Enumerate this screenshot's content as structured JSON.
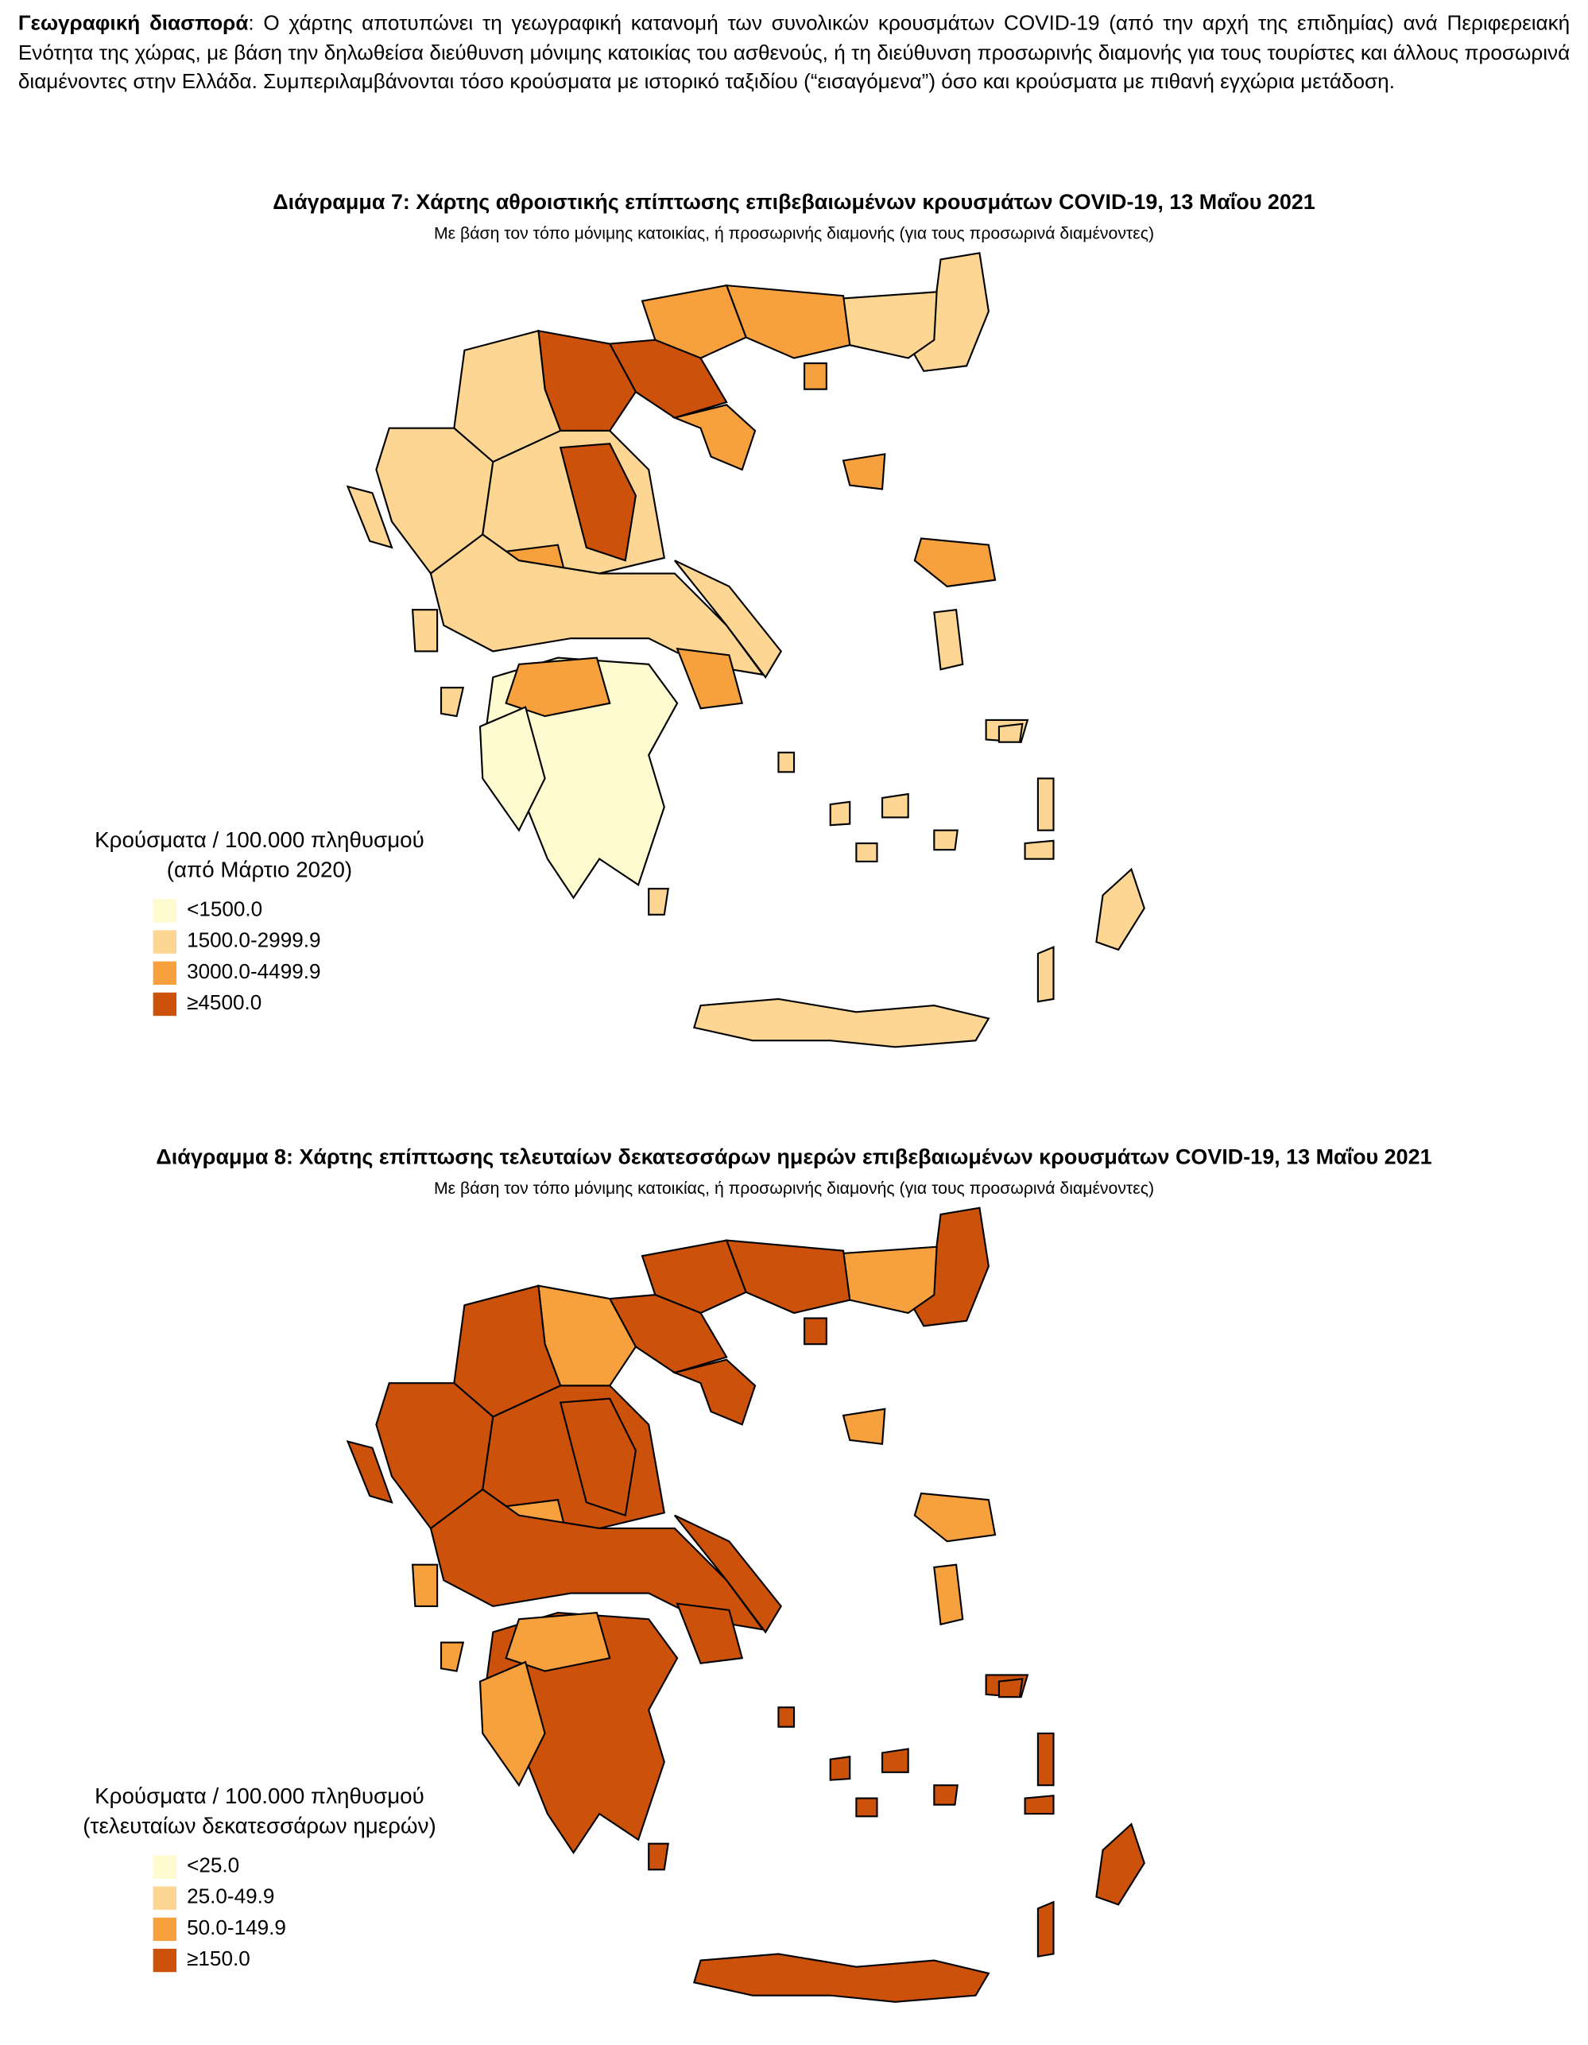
{
  "paragraph": {
    "lead": "Γεωγραφική διασπορά",
    "text": ": Ο χάρτης αποτυπώνει τη γεωγραφική κατανομή των συνολικών κρουσμάτων COVID-19 (από την αρχή της επιδημίας) ανά Περιφερειακή Ενότητα της χώρας, με βάση την δηλωθείσα διεύθυνση μόνιμης κατοικίας του ασθενούς, ή τη διεύθυνση προσωρινής διαμονής για τους τουρίστες και άλλους προσωρινά διαμένοντες στην Ελλάδα. Συμπεριλαμβάνονται τόσο κρούσματα με ιστορικό ταξιδίου (“εισαγόμενα”) όσο και κρούσματα με πιθανή εγχώρια μετάδοση."
  },
  "maps": [
    {
      "title": "Διάγραμμα 7: Χάρτης αθροιστικής επίπτωσης επιβεβαιωμένων κρουσμάτων COVID-19, 13 Μαΐου 2021",
      "subtitle": "Με βάση τον τόπο μόνιμης κατοικίας, ή προσωρινής διαμονής (για τους προσωρινά διαμένοντες)",
      "legend": {
        "title_lines": [
          "Κρούσματα / 100.000 πληθυσμού",
          "(από Μάρτιο 2020)"
        ],
        "items": [
          {
            "label": "<1500.0",
            "color": "#fefbd0"
          },
          {
            "label": "1500.0-2999.9",
            "color": "#fdd693"
          },
          {
            "label": "3000.0-4499.9",
            "color": "#f7a03e"
          },
          {
            "label": "≥4500.0",
            "color": "#cc520c"
          }
        ]
      }
    },
    {
      "title": "Διάγραμμα 8: Χάρτης επίπτωσης τελευταίων δεκατεσσάρων ημερών επιβεβαιωμένων κρουσμάτων COVID-19, 13 Μαΐου 2021",
      "subtitle": "Με βάση τον τόπο μόνιμης κατοικίας, ή προσωρινής διαμονής (για τους προσωρινά διαμένοντες)",
      "legend": {
        "title_lines": [
          "Κρούσματα / 100.000 πληθυσμού",
          "(τελευταίων δεκατεσσάρων ημερών)"
        ],
        "items": [
          {
            "label": "<25.0",
            "color": "#fefbd0"
          },
          {
            "label": "25.0-49.9",
            "color": "#fdd693"
          },
          {
            "label": "50.0-149.9",
            "color": "#f7a03e"
          },
          {
            "label": "≥150.0",
            "color": "#cc520c"
          }
        ]
      }
    }
  ]
}
